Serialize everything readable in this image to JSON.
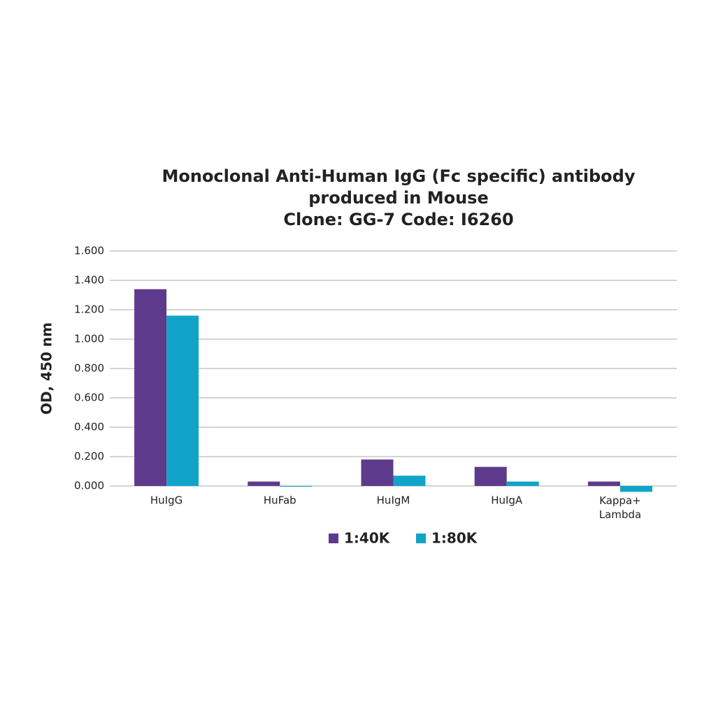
{
  "chart_data": {
    "type": "bar",
    "title": [
      "Monoclonal Anti-Human IgG (Fc specific) antibody",
      "produced in Mouse",
      "Clone: GG-7  Code: I6260"
    ],
    "y_label": "OD, 450 nm",
    "categories": [
      "HuIgG",
      "HuFab",
      "HuIgM",
      "HuIgA",
      "Kappa+ Lambda"
    ],
    "series": [
      {
        "name": "1:40K",
        "color": "#5e3a8c",
        "values": [
          1.34,
          0.03,
          0.18,
          0.13,
          0.03
        ]
      },
      {
        "name": "1:80K",
        "color": "#12a4c8",
        "values": [
          1.16,
          -0.005,
          0.07,
          0.03,
          -0.04
        ]
      }
    ],
    "ylim": [
      0,
      1.6
    ],
    "yticks": [
      {
        "value": 0,
        "label": "0.000"
      },
      {
        "value": 0.2,
        "label": "0.200"
      },
      {
        "value": 0.4,
        "label": "0.400"
      },
      {
        "value": 0.6,
        "label": "0.600"
      },
      {
        "value": 0.8,
        "label": "0.800"
      },
      {
        "value": 1.0,
        "label": "1.000"
      },
      {
        "value": 1.2,
        "label": "1.200"
      },
      {
        "value": 1.4,
        "label": "1.400"
      },
      {
        "value": 1.6,
        "label": "1.600"
      }
    ],
    "grid": true
  }
}
